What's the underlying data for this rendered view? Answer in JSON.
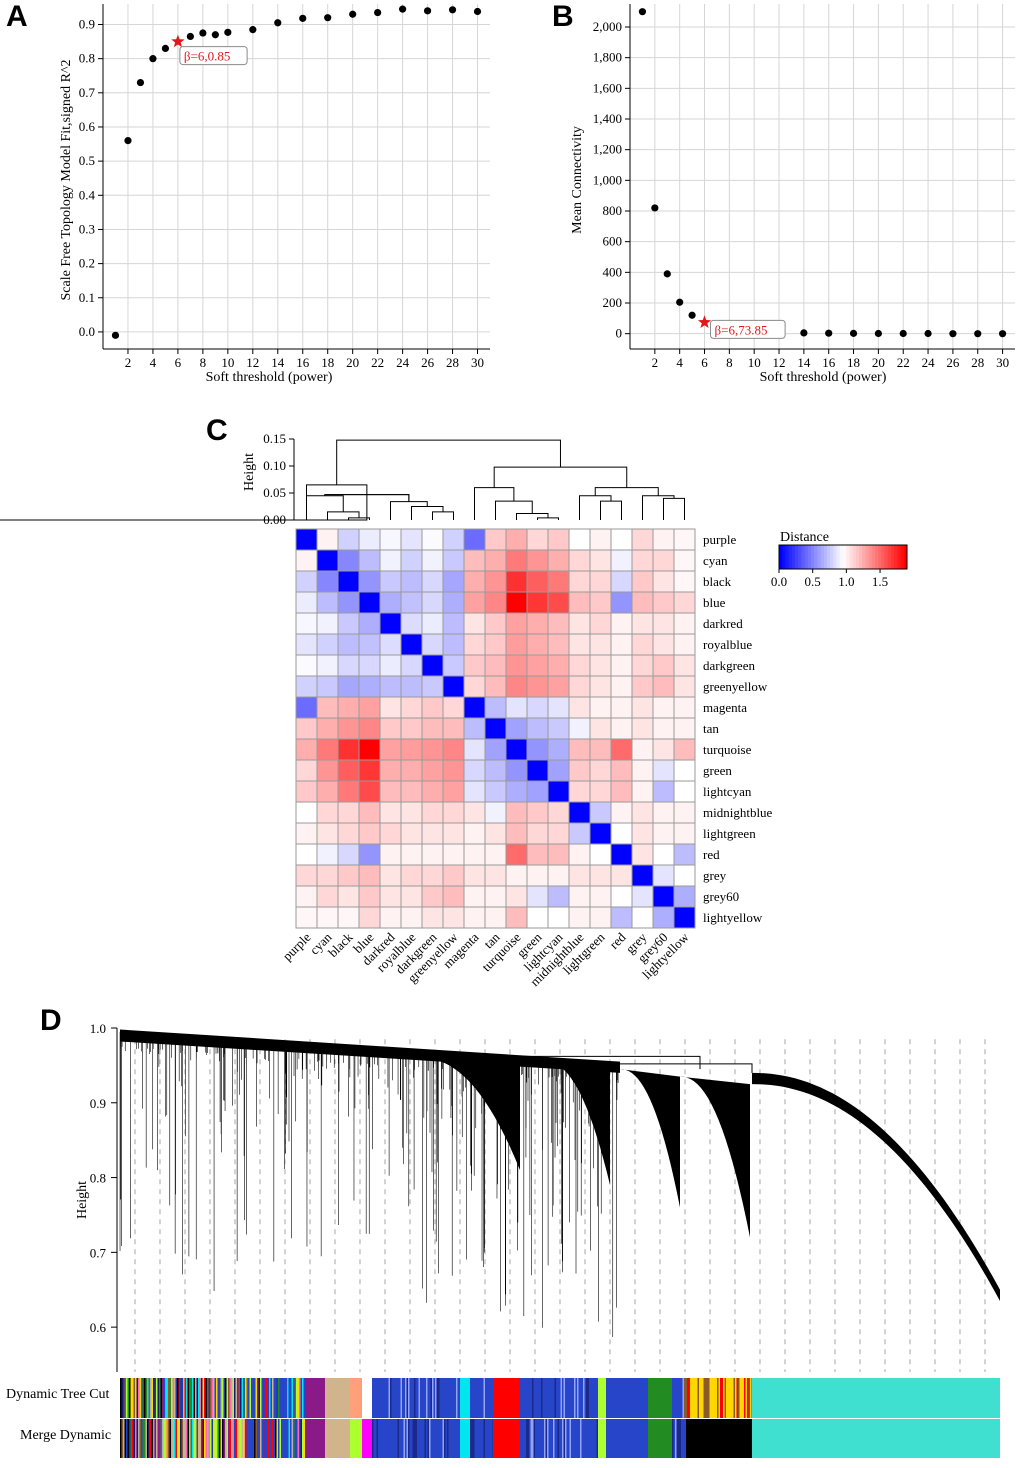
{
  "panels": {
    "a": {
      "letter": "A",
      "chart_data": {
        "type": "scatter",
        "xlabel": "Soft threshold (power)",
        "ylabel": "Scale Free Topology Model Fit,signed R^2",
        "xlim": [
          0,
          31
        ],
        "ylim": [
          -0.05,
          0.96
        ],
        "xticks": [
          2,
          4,
          6,
          8,
          10,
          12,
          14,
          16,
          18,
          20,
          22,
          24,
          26,
          28,
          30
        ],
        "yticks": [
          0.0,
          0.1,
          0.2,
          0.3,
          0.4,
          0.5,
          0.6,
          0.7,
          0.8,
          0.9
        ],
        "ytick_labels": [
          "0.0",
          "0.1",
          "0.2",
          "0.3",
          "0.4",
          "0.5",
          "0.6",
          "0.7",
          "0.8",
          "0.9"
        ],
        "grid": true,
        "x": [
          1,
          2,
          3,
          4,
          5,
          6,
          7,
          8,
          9,
          10,
          12,
          14,
          16,
          18,
          20,
          22,
          24,
          26,
          28,
          30
        ],
        "y": [
          -0.01,
          0.56,
          0.73,
          0.8,
          0.83,
          0.85,
          0.865,
          0.875,
          0.87,
          0.877,
          0.885,
          0.905,
          0.918,
          0.92,
          0.93,
          0.935,
          0.945,
          0.94,
          0.943,
          0.938
        ],
        "highlight": {
          "x": 6,
          "y": 0.85,
          "label": "β=6,0.85",
          "color": "#e0181b"
        }
      }
    },
    "b": {
      "letter": "B",
      "chart_data": {
        "type": "scatter",
        "xlabel": "Soft threshold (power)",
        "ylabel": "Mean Connectivity",
        "xlim": [
          0,
          31
        ],
        "ylim": [
          -100,
          2150
        ],
        "xticks": [
          2,
          4,
          6,
          8,
          10,
          12,
          14,
          16,
          18,
          20,
          22,
          24,
          26,
          28,
          30
        ],
        "yticks": [
          0,
          200,
          400,
          600,
          800,
          1000,
          1200,
          1400,
          1600,
          1800,
          2000
        ],
        "ytick_labels": [
          "0",
          "200",
          "400",
          "600",
          "800",
          "1,000",
          "1,200",
          "1,400",
          "1,600",
          "1,800",
          "2,000"
        ],
        "grid": true,
        "x": [
          1,
          2,
          3,
          4,
          5,
          6,
          7,
          8,
          9,
          10,
          12,
          14,
          16,
          18,
          20,
          22,
          24,
          26,
          28,
          30
        ],
        "y": [
          2100,
          820,
          390,
          205,
          120,
          73.85,
          48,
          35,
          24,
          18,
          8,
          5,
          3,
          2,
          1,
          1,
          1,
          0,
          0,
          0
        ],
        "grey_points": [
          7,
          8,
          9,
          10
        ],
        "highlight": {
          "x": 6,
          "y": 73.85,
          "label": "β=6,73.85",
          "color": "#e0181b"
        }
      }
    },
    "c": {
      "letter": "C",
      "chart_data": {
        "type": "heatmap",
        "dendrogram_ylabel": "Height",
        "dendrogram_yticks": [
          0.0,
          0.05,
          0.1,
          0.15
        ],
        "dendrogram_ytick_labels": [
          "0.00",
          "0.05",
          "0.10",
          "0.15"
        ],
        "labels": [
          "purple",
          "cyan",
          "black",
          "blue",
          "darkred",
          "royalblue",
          "darkgreen",
          "greenyellow",
          "magenta",
          "tan",
          "turquoise",
          "green",
          "lightcyan",
          "midnightblue",
          "lightgreen",
          "red",
          "grey",
          "grey60",
          "lightyellow"
        ],
        "legend_title": "Distance",
        "legend_ticks": [
          "0.0",
          "0.5",
          "1.0",
          "1.5"
        ],
        "value_range": [
          0,
          1.9
        ],
        "matrix": [
          [
            0.0,
            1.0,
            0.78,
            0.88,
            0.92,
            0.85,
            0.93,
            0.78,
            0.4,
            1.15,
            1.25,
            1.1,
            1.15,
            0.95,
            1.0,
            0.95,
            1.1,
            1.0,
            0.98
          ],
          [
            1.0,
            0.0,
            0.5,
            0.7,
            0.9,
            0.78,
            0.9,
            0.75,
            1.2,
            1.25,
            1.45,
            1.35,
            1.25,
            1.1,
            1.05,
            0.9,
            1.1,
            1.1,
            0.98
          ],
          [
            0.78,
            0.5,
            0.0,
            0.55,
            0.75,
            0.7,
            0.8,
            0.62,
            1.25,
            1.35,
            1.72,
            1.55,
            1.45,
            1.1,
            1.1,
            0.8,
            1.15,
            1.05,
            0.98
          ],
          [
            0.88,
            0.7,
            0.55,
            0.0,
            0.65,
            0.72,
            0.8,
            0.65,
            1.3,
            1.4,
            1.95,
            1.7,
            1.62,
            1.2,
            1.15,
            0.55,
            1.2,
            1.15,
            1.1
          ],
          [
            0.92,
            0.9,
            0.75,
            0.65,
            0.0,
            0.82,
            0.88,
            0.7,
            1.05,
            1.15,
            1.3,
            1.25,
            1.2,
            1.05,
            1.1,
            1.0,
            1.05,
            1.05,
            1.0
          ],
          [
            0.85,
            0.78,
            0.7,
            0.72,
            0.82,
            0.0,
            0.8,
            0.7,
            1.1,
            1.15,
            1.32,
            1.25,
            1.2,
            1.05,
            1.05,
            1.0,
            1.1,
            1.05,
            1.0
          ],
          [
            0.93,
            0.9,
            0.8,
            0.8,
            0.88,
            0.8,
            0.0,
            0.75,
            1.15,
            1.2,
            1.35,
            1.3,
            1.25,
            1.1,
            1.05,
            1.0,
            1.1,
            1.15,
            1.05
          ],
          [
            0.78,
            0.75,
            0.62,
            0.65,
            0.7,
            0.7,
            0.75,
            0.0,
            1.1,
            1.2,
            1.4,
            1.35,
            1.3,
            1.1,
            1.05,
            1.0,
            1.15,
            1.2,
            1.05
          ],
          [
            0.4,
            1.2,
            1.25,
            1.3,
            1.05,
            1.1,
            1.15,
            1.1,
            0.0,
            0.7,
            0.85,
            0.8,
            0.85,
            1.05,
            1.0,
            1.0,
            1.05,
            1.0,
            1.0
          ],
          [
            1.15,
            1.25,
            1.35,
            1.4,
            1.15,
            1.15,
            1.2,
            1.2,
            0.7,
            0.0,
            0.6,
            0.7,
            0.75,
            0.9,
            1.05,
            1.0,
            1.05,
            1.0,
            1.0
          ],
          [
            1.25,
            1.45,
            1.72,
            1.95,
            1.3,
            1.32,
            1.35,
            1.4,
            0.85,
            0.6,
            0.0,
            0.55,
            0.65,
            1.2,
            1.2,
            1.5,
            1.0,
            1.05,
            1.2
          ],
          [
            1.1,
            1.35,
            1.55,
            1.7,
            1.25,
            1.25,
            1.3,
            1.35,
            0.8,
            0.7,
            0.55,
            0.0,
            0.6,
            1.15,
            1.1,
            1.2,
            1.0,
            0.85,
            0.95
          ],
          [
            1.15,
            1.25,
            1.45,
            1.62,
            1.2,
            1.2,
            1.25,
            1.3,
            0.85,
            0.75,
            0.65,
            0.6,
            0.0,
            1.1,
            1.1,
            1.2,
            1.0,
            0.7,
            0.95
          ],
          [
            0.95,
            1.1,
            1.1,
            1.2,
            1.05,
            1.05,
            1.1,
            1.1,
            1.05,
            0.9,
            1.2,
            1.15,
            1.1,
            0.0,
            0.75,
            1.0,
            1.05,
            1.0,
            1.0
          ],
          [
            1.0,
            1.05,
            1.1,
            1.15,
            1.1,
            1.05,
            1.05,
            1.05,
            1.0,
            1.05,
            1.2,
            1.1,
            1.1,
            0.75,
            0.0,
            0.95,
            1.05,
            1.0,
            1.0
          ],
          [
            0.95,
            0.9,
            0.8,
            0.55,
            1.0,
            1.0,
            1.0,
            1.0,
            1.0,
            1.0,
            1.5,
            1.2,
            1.2,
            1.0,
            0.95,
            0.0,
            1.05,
            0.95,
            0.7
          ],
          [
            1.1,
            1.1,
            1.15,
            1.2,
            1.05,
            1.1,
            1.1,
            1.15,
            1.05,
            1.05,
            1.0,
            1.0,
            1.0,
            1.05,
            1.05,
            1.05,
            0.0,
            0.85,
            0.95
          ],
          [
            1.0,
            1.1,
            1.05,
            1.15,
            1.05,
            1.05,
            1.15,
            1.2,
            1.0,
            1.0,
            1.05,
            0.85,
            0.7,
            1.0,
            1.0,
            0.95,
            0.85,
            0.0,
            0.65
          ],
          [
            0.98,
            0.98,
            0.98,
            1.1,
            1.0,
            1.0,
            1.05,
            1.05,
            1.0,
            1.0,
            1.2,
            0.95,
            0.95,
            1.0,
            1.0,
            0.7,
            0.95,
            0.65,
            0.0
          ]
        ]
      }
    },
    "d": {
      "letter": "D",
      "chart_data": {
        "type": "dendrogram",
        "ylabel": "Height",
        "ylim": [
          0.54,
          1.0
        ],
        "yticks": [
          0.6,
          0.7,
          0.8,
          0.9,
          1.0
        ],
        "ytick_labels": [
          "0.6",
          "0.7",
          "0.8",
          "0.9",
          "1.0"
        ],
        "colorbar_labels": [
          "Dynamic Tree Cut",
          "Merge Dynamic"
        ],
        "merged_module_colors": [
          "#8b5a2b",
          "#d2b48c",
          "#8b1a89",
          "#2745c8",
          "#ff0000",
          "#00e5ee",
          "#228b22",
          "#000000",
          "#40e0d0"
        ]
      }
    }
  }
}
